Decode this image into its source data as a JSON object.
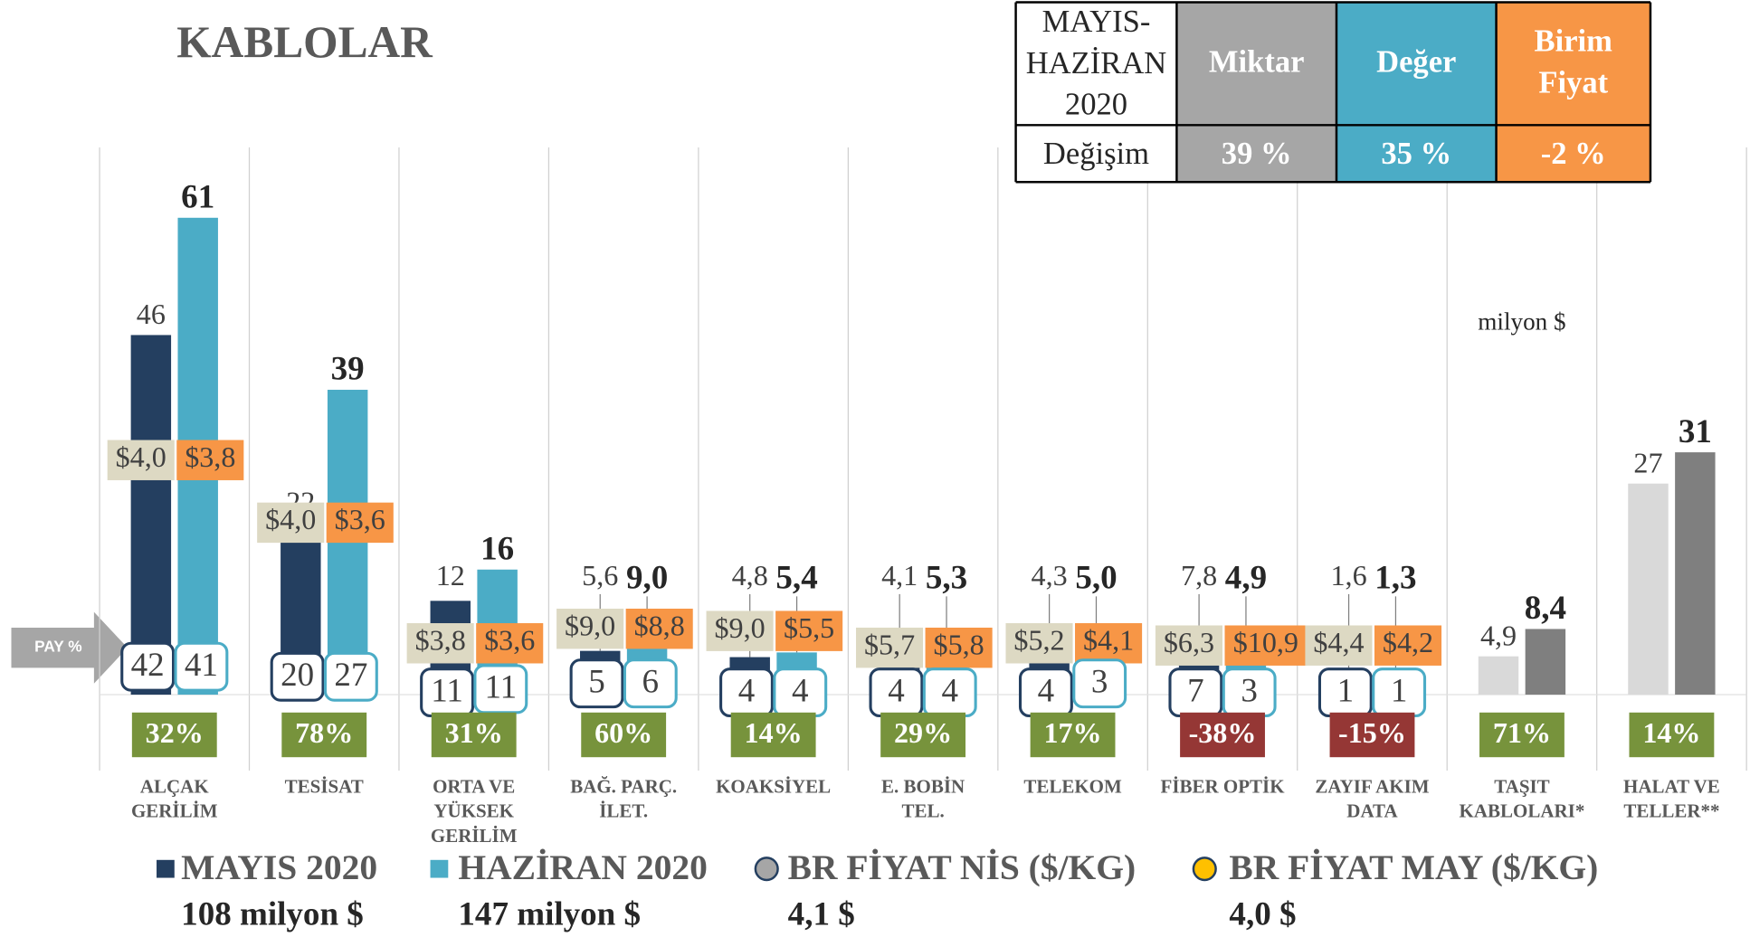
{
  "chart_data": {
    "type": "bar",
    "title": "KABLOLAR",
    "unit_note": "milyon $",
    "categories": [
      [
        "ALÇAK",
        "GERİLİM"
      ],
      [
        "TESİSAT"
      ],
      [
        "ORTA VE",
        "YÜKSEK",
        "GERİLİM"
      ],
      [
        "BAĞ. PARÇ.",
        "İLET."
      ],
      [
        "KOAKSİYEL"
      ],
      [
        "E. BOBİN",
        "TEL."
      ],
      [
        "TELEKOM"
      ],
      [
        "FİBER OPTİK"
      ],
      [
        "ZAYIF AKIM",
        "DATA"
      ],
      [
        "TAŞIT",
        "KABLOLARI*"
      ],
      [
        "HALAT VE",
        "TELLER**"
      ]
    ],
    "ylim": [
      0,
      70
    ],
    "series": [
      {
        "name": "MAYIS 2020",
        "total": "108 milyon $",
        "color": "#243f60",
        "colors": [
          "#243f60",
          "#243f60",
          "#243f60",
          "#243f60",
          "#243f60",
          "#243f60",
          "#243f60",
          "#243f60",
          "#243f60",
          "#d9d9d9",
          "#d9d9d9"
        ],
        "values": [
          46,
          22,
          12,
          5.6,
          4.8,
          4.1,
          4.3,
          7.8,
          1.6,
          4.9,
          27
        ],
        "value_labels": [
          "46",
          "22",
          "12",
          "5,6",
          "4,8",
          "4,1",
          "4,3",
          "7,8",
          "1,6",
          "4,9",
          "27"
        ],
        "shares": [
          42,
          20,
          11,
          5,
          4,
          4,
          4,
          7,
          1,
          null,
          null
        ]
      },
      {
        "name": "HAZİRAN 2020",
        "total": "147 milyon $",
        "color": "#4bacc6",
        "colors": [
          "#4bacc6",
          "#4bacc6",
          "#4bacc6",
          "#4bacc6",
          "#4bacc6",
          "#4bacc6",
          "#4bacc6",
          "#4bacc6",
          "#4bacc6",
          "#7f7f7f",
          "#7f7f7f"
        ],
        "values": [
          61,
          39,
          16,
          9.0,
          5.4,
          5.3,
          5.0,
          4.9,
          1.3,
          8.4,
          31
        ],
        "value_labels": [
          "61",
          "39",
          "16",
          "9,0",
          "5,4",
          "5,3",
          "5,0",
          "4,9",
          "1,3",
          "8,4",
          "31"
        ],
        "shares": [
          41,
          27,
          11,
          6,
          4,
          4,
          3,
          3,
          1,
          null,
          null
        ]
      }
    ],
    "price_series": [
      {
        "name": "BR FİYAT NİS ($/KG)",
        "total": "4,1 $",
        "color": "#ddd9c3",
        "legend_color": "#a6a6a6",
        "values": [
          4.0,
          4.0,
          3.8,
          9.0,
          9.0,
          5.7,
          5.2,
          6.3,
          4.4,
          null,
          null
        ],
        "value_labels": [
          "$4,0",
          "$4,0",
          "$3,8",
          "$9,0",
          "$9,0",
          "$5,7",
          "$5,2",
          "$6,3",
          "$4,4",
          null,
          null
        ]
      },
      {
        "name": "BR FİYAT MAY ($/KG)",
        "total": "4,0 $",
        "color": "#f79646",
        "legend_color": "#ffc000",
        "values": [
          3.8,
          3.6,
          3.6,
          8.8,
          5.5,
          5.8,
          4.1,
          10.9,
          4.2,
          null,
          null
        ],
        "value_labels": [
          "$3,8",
          "$3,6",
          "$3,6",
          "$8,8",
          "$5,5",
          "$5,8",
          "$4,1",
          "$10,9",
          "$4,2",
          null,
          null
        ]
      }
    ],
    "pay_label": "PAY %",
    "pay_values": [
      32,
      78,
      31,
      60,
      14,
      29,
      17,
      -38,
      -15,
      71,
      14
    ],
    "pay_labels": [
      "32%",
      "78%",
      "31%",
      "60%",
      "14%",
      "29%",
      "17%",
      "-38%",
      "-15%",
      "71%",
      "14%"
    ],
    "pay_color": "#77933c",
    "pay_negative_color": "#953735"
  },
  "summary_table": {
    "corner": [
      "MAYIS-",
      "HAZİRAN",
      "2020"
    ],
    "columns": [
      {
        "lines": [
          "Miktar"
        ],
        "color": "#a6a6a6"
      },
      {
        "lines": [
          "Değer"
        ],
        "color": "#4bacc6"
      },
      {
        "lines": [
          "Birim",
          "Fiyat"
        ],
        "color": "#f79646"
      }
    ],
    "row_label": "Değişim",
    "values": [
      39,
      35,
      -2
    ],
    "value_labels": [
      "39 %",
      "35 %",
      "-2 %"
    ]
  }
}
